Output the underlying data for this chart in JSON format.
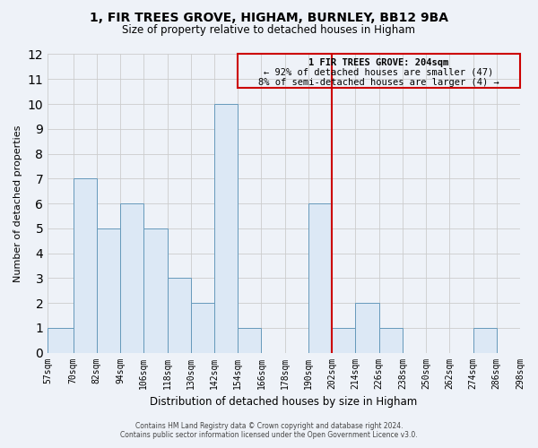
{
  "title": "1, FIR TREES GROVE, HIGHAM, BURNLEY, BB12 9BA",
  "subtitle": "Size of property relative to detached houses in Higham",
  "xlabel": "Distribution of detached houses by size in Higham",
  "ylabel": "Number of detached properties",
  "bin_edges": [
    57,
    70,
    82,
    94,
    106,
    118,
    130,
    142,
    154,
    166,
    178,
    190,
    202,
    214,
    226,
    238,
    250,
    262,
    274,
    286,
    298
  ],
  "bin_labels": [
    "57sqm",
    "70sqm",
    "82sqm",
    "94sqm",
    "106sqm",
    "118sqm",
    "130sqm",
    "142sqm",
    "154sqm",
    "166sqm",
    "178sqm",
    "190sqm",
    "202sqm",
    "214sqm",
    "226sqm",
    "238sqm",
    "250sqm",
    "262sqm",
    "274sqm",
    "286sqm",
    "298sqm"
  ],
  "counts": [
    1,
    7,
    5,
    6,
    5,
    3,
    2,
    10,
    1,
    0,
    0,
    6,
    1,
    2,
    1,
    0,
    0,
    0,
    1,
    0
  ],
  "bar_color": "#ccd9e8",
  "bar_face_color": "#dce8f5",
  "bar_edge_color": "#6699bb",
  "grid_color": "#cccccc",
  "ylim": [
    0,
    12
  ],
  "yticks": [
    0,
    1,
    2,
    3,
    4,
    5,
    6,
    7,
    8,
    9,
    10,
    11,
    12
  ],
  "vline_color": "#cc0000",
  "vline_x": 202,
  "annotation_title": "1 FIR TREES GROVE: 204sqm",
  "annotation_line1": "← 92% of detached houses are smaller (47)",
  "annotation_line2": "8% of semi-detached houses are larger (4) →",
  "footer_line1": "Contains HM Land Registry data © Crown copyright and database right 2024.",
  "footer_line2": "Contains public sector information licensed under the Open Government Licence v3.0.",
  "background_color": "#eef2f8"
}
